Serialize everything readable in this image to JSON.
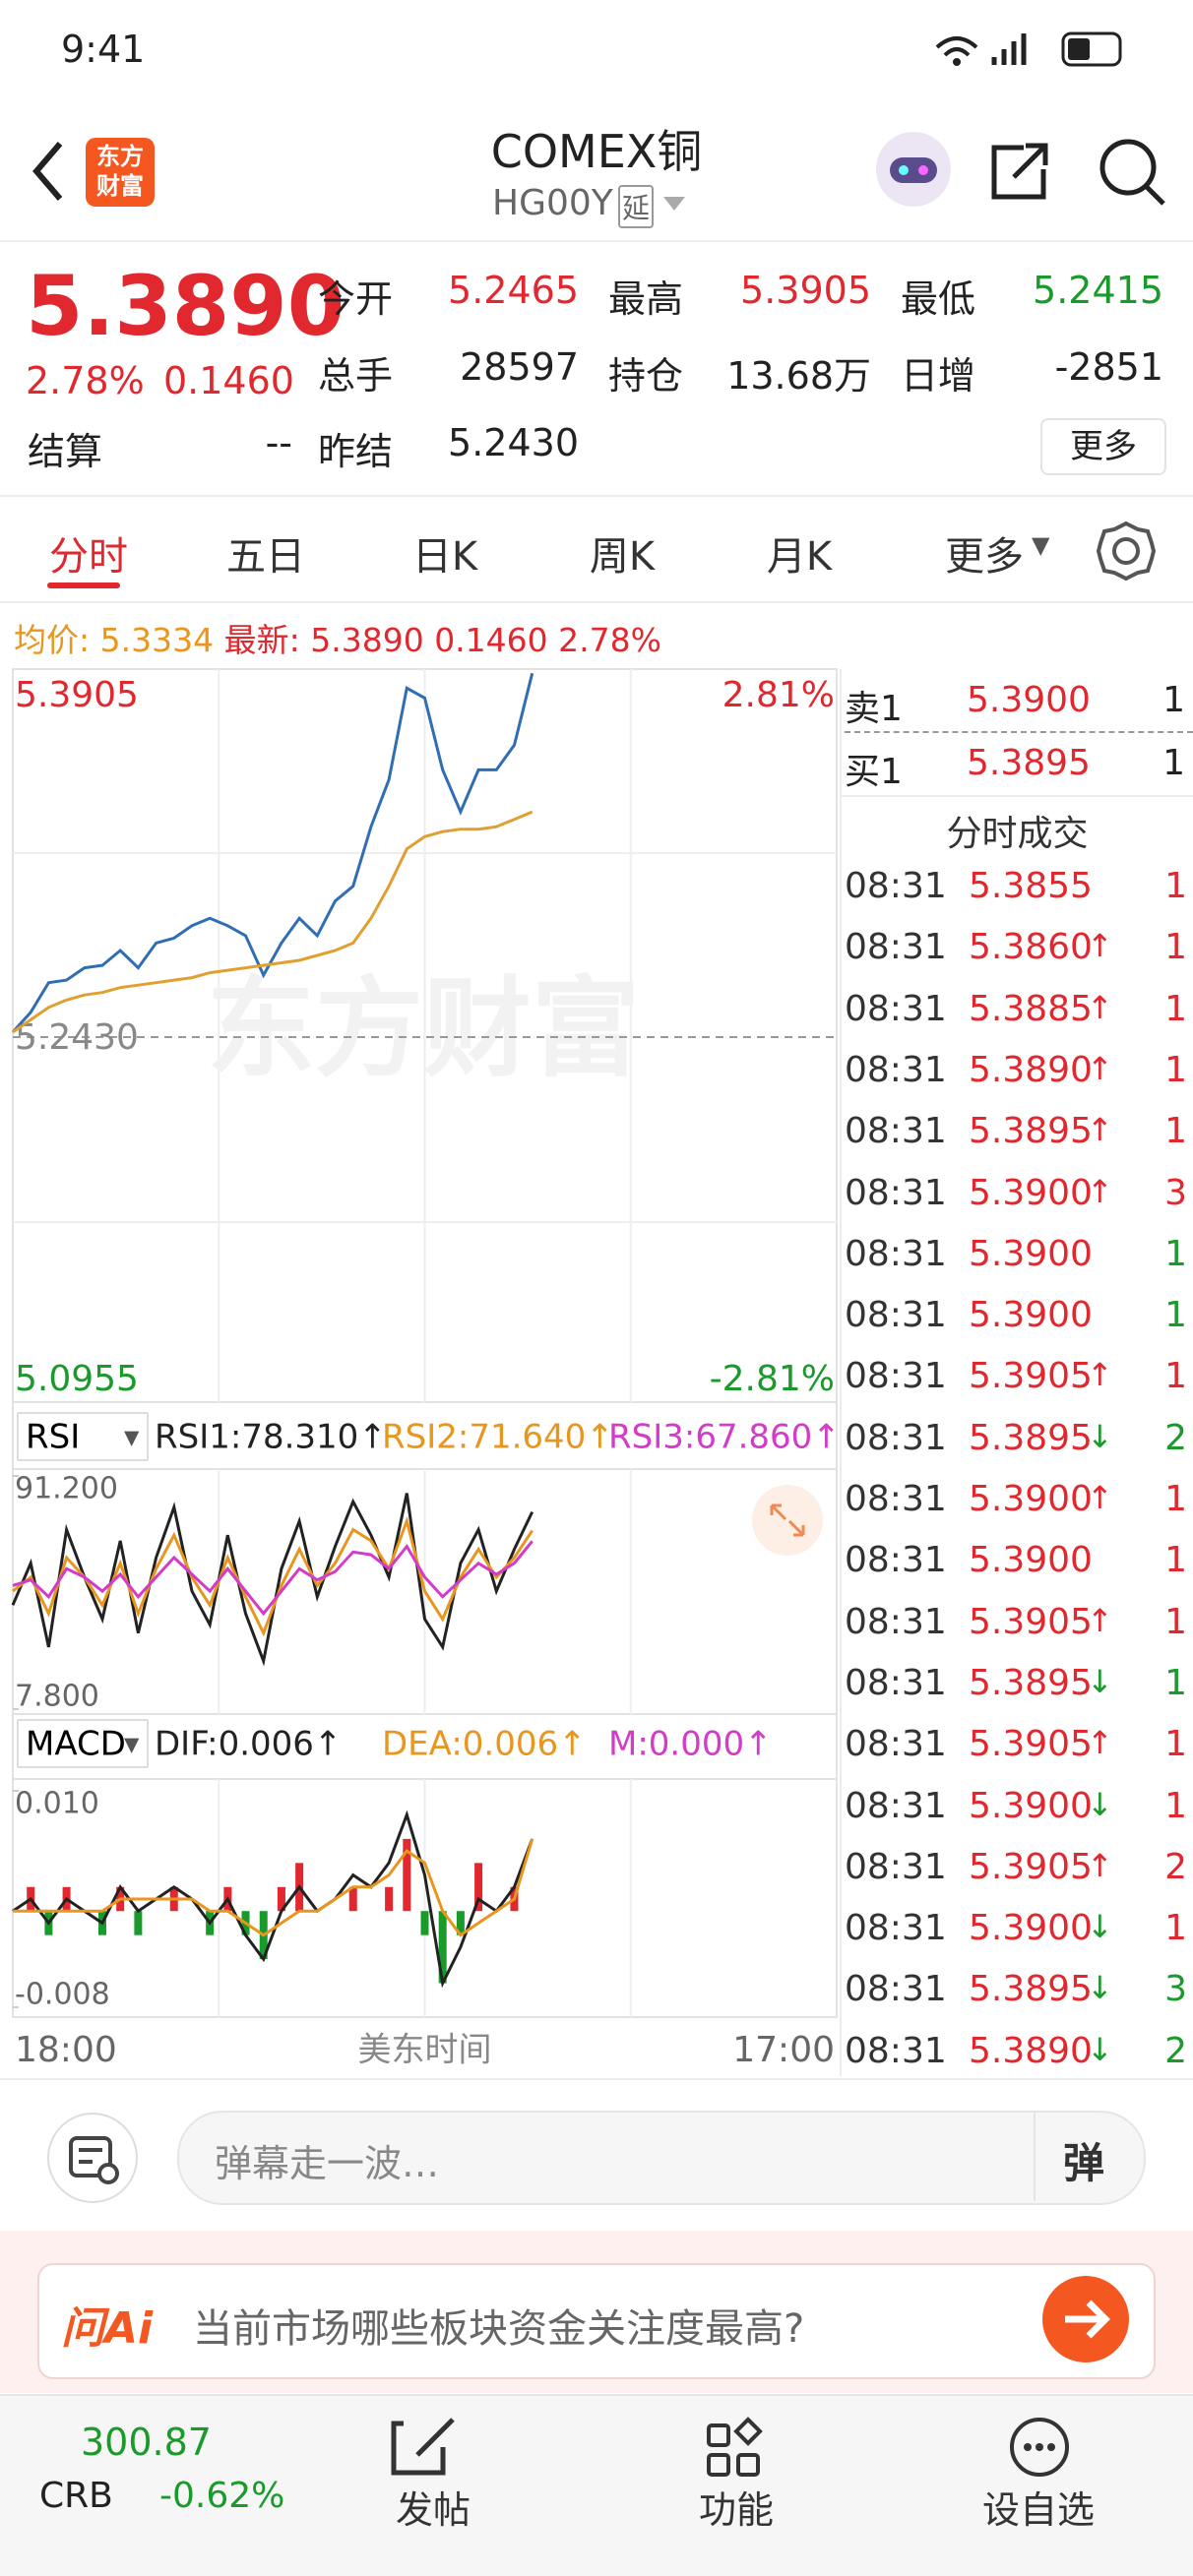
{
  "status_bar": {
    "time": "9:41"
  },
  "header": {
    "title": "COMEX铜",
    "code": "HG00Y",
    "delay_badge": "延",
    "logo": "东方财富"
  },
  "quote": {
    "price": "5.3890",
    "change_pct": "2.78%",
    "change": "0.1460",
    "fields": [
      {
        "label": "今开",
        "value": "5.2465",
        "color": "#e0282e"
      },
      {
        "label": "最高",
        "value": "5.3905",
        "color": "#e0282e"
      },
      {
        "label": "最低",
        "value": "5.2415",
        "color": "#1a9a2b"
      },
      {
        "label": "总手",
        "value": "28597",
        "color": "#222222"
      },
      {
        "label": "持仓",
        "value": "13.68万",
        "color": "#222222"
      },
      {
        "label": "日增",
        "value": "-2851",
        "color": "#222222"
      },
      {
        "label": "结算",
        "value": "--",
        "color": "#222222"
      },
      {
        "label": "昨结",
        "value": "5.2430",
        "color": "#222222"
      }
    ],
    "more_button": "更多"
  },
  "tabs": [
    "分时",
    "五日",
    "日K",
    "周K",
    "月K",
    "更多"
  ],
  "summary": {
    "avg_label": "均价:",
    "avg": "5.3334",
    "last_label": "最新:",
    "last": "5.3890",
    "change": "0.1460",
    "change_pct": "2.78%"
  },
  "chart_data": [
    {
      "type": "line",
      "watermark": "东方财富",
      "x": [
        0,
        30,
        60,
        90,
        120,
        150,
        180,
        210,
        240,
        270,
        300,
        330,
        360,
        390,
        420,
        450,
        480,
        510,
        540,
        570,
        600,
        630,
        660,
        690,
        720,
        750,
        780,
        810,
        840,
        870
      ],
      "xlim": [
        0,
        1380
      ],
      "xticks": [
        {
          "value": 0,
          "label": "18:00"
        },
        {
          "value": 1380,
          "label": "17:00"
        }
      ],
      "x_label": "美东时间",
      "ylim": [
        5.0955,
        5.3905
      ],
      "yticks": [
        5.3905,
        {
          "value": 5.243,
          "label": "5.2430"
        },
        5.0955
      ],
      "right_ticks": [
        "2.81%",
        "-2.81%"
      ],
      "series": [
        {
          "color": "#2f6db5",
          "values": [
            5.245,
            5.253,
            5.265,
            5.266,
            5.271,
            5.272,
            5.278,
            5.271,
            5.281,
            5.283,
            5.288,
            5.291,
            5.288,
            5.284,
            5.268,
            5.281,
            5.291,
            5.284,
            5.298,
            5.304,
            5.328,
            5.347,
            5.384,
            5.38,
            5.351,
            5.334,
            5.351,
            5.351,
            5.361,
            5.39
          ]
        },
        {
          "color": "#e0a030",
          "values": [
            5.245,
            5.25,
            5.255,
            5.258,
            5.26,
            5.261,
            5.263,
            5.264,
            5.265,
            5.266,
            5.267,
            5.269,
            5.27,
            5.271,
            5.272,
            5.273,
            5.274,
            5.276,
            5.278,
            5.281,
            5.291,
            5.304,
            5.319,
            5.324,
            5.326,
            5.327,
            5.327,
            5.328,
            5.331,
            5.334
          ]
        }
      ]
    },
    {
      "type": "line",
      "selector": "RSI",
      "ylim": [
        7.8,
        91.2
      ],
      "yticks": [
        {
          "value": 91.2,
          "label": "91.200"
        },
        {
          "value": 7.8,
          "label": "7.800"
        }
      ],
      "series": [
        {
          "label": "RSI1:78.310↑",
          "color": "#222222",
          "values": [
            45,
            60,
            30,
            72,
            55,
            40,
            68,
            35,
            62,
            80,
            50,
            38,
            70,
            42,
            25,
            58,
            75,
            48,
            66,
            82,
            70,
            55,
            85,
            40,
            30,
            60,
            72,
            50,
            65,
            78.31
          ]
        },
        {
          "label": "RSI2:71.640↑",
          "color": "#e8961e",
          "values": [
            50,
            55,
            42,
            62,
            55,
            45,
            60,
            42,
            58,
            70,
            55,
            45,
            62,
            48,
            35,
            52,
            65,
            52,
            60,
            72,
            68,
            58,
            75,
            50,
            40,
            55,
            65,
            55,
            62,
            71.64
          ]
        },
        {
          "label": "RSI3:67.860↑",
          "color": "#d23cc8",
          "values": [
            52,
            54,
            48,
            58,
            55,
            50,
            56,
            48,
            55,
            62,
            56,
            50,
            58,
            50,
            42,
            50,
            58,
            54,
            57,
            64,
            63,
            58,
            66,
            55,
            48,
            54,
            60,
            56,
            60,
            67.86
          ]
        }
      ]
    },
    {
      "type": "line",
      "selector": "MACD",
      "ylim": [
        -0.008,
        0.01
      ],
      "yticks": [
        {
          "value": 0.01,
          "label": "0.010"
        },
        {
          "value": -0.008,
          "label": "-0.008"
        }
      ],
      "series": [
        {
          "label": "DIF:0.006↑",
          "color": "#222222",
          "values": [
            0,
            0.001,
            -0.001,
            0.001,
            0,
            -0.001,
            0.002,
            0,
            0.001,
            0.002,
            0.001,
            -0.001,
            0.001,
            -0.002,
            -0.004,
            0,
            0.002,
            0,
            0.001,
            0.003,
            0.002,
            0.004,
            0.008,
            0.003,
            -0.006,
            -0.003,
            0.001,
            0,
            0.002,
            0.006
          ]
        },
        {
          "label": "DEA:0.006↑",
          "color": "#e8961e",
          "values": [
            0,
            0,
            0,
            0,
            0,
            0,
            0.001,
            0.001,
            0.001,
            0.001,
            0.001,
            0,
            0,
            -0.001,
            -0.002,
            -0.001,
            0,
            0,
            0.001,
            0.002,
            0.002,
            0.003,
            0.005,
            0.004,
            0,
            -0.002,
            -0.001,
            0,
            0.001,
            0.006
          ]
        }
      ],
      "histogram": {
        "label": "M:0.000↑",
        "label_color": "#d23cc8",
        "color_up": "#e0282e",
        "color_down": "#1a9a2b",
        "values": [
          0,
          0.002,
          -0.002,
          0.002,
          0,
          -0.002,
          0.002,
          -0.002,
          0,
          0.002,
          0,
          -0.002,
          0.002,
          -0.002,
          -0.004,
          0.002,
          0.004,
          0,
          0,
          0.002,
          0,
          0.002,
          0.006,
          -0.002,
          -0.006,
          -0.002,
          0.004,
          0,
          0.002,
          0
        ]
      }
    }
  ],
  "order_book": [
    {
      "label": "卖1",
      "price": "5.3900",
      "vol": "1"
    },
    {
      "label": "买1",
      "price": "5.3895",
      "vol": "1"
    }
  ],
  "trades": {
    "title": "分时成交",
    "rows": [
      {
        "time": "08:31",
        "price": "5.3855",
        "dir": "",
        "vol": "1",
        "vol_color": "#e0282e"
      },
      {
        "time": "08:31",
        "price": "5.3860",
        "dir": "↑",
        "vol": "1",
        "vol_color": "#e0282e"
      },
      {
        "time": "08:31",
        "price": "5.3885",
        "dir": "↑",
        "vol": "1",
        "vol_color": "#e0282e"
      },
      {
        "time": "08:31",
        "price": "5.3890",
        "dir": "↑",
        "vol": "1",
        "vol_color": "#e0282e"
      },
      {
        "time": "08:31",
        "price": "5.3895",
        "dir": "↑",
        "vol": "1",
        "vol_color": "#e0282e"
      },
      {
        "time": "08:31",
        "price": "5.3900",
        "dir": "↑",
        "vol": "3",
        "vol_color": "#e0282e"
      },
      {
        "time": "08:31",
        "price": "5.3900",
        "dir": "",
        "vol": "1",
        "vol_color": "#1a9a2b"
      },
      {
        "time": "08:31",
        "price": "5.3900",
        "dir": "",
        "vol": "1",
        "vol_color": "#1a9a2b"
      },
      {
        "time": "08:31",
        "price": "5.3905",
        "dir": "↑",
        "vol": "1",
        "vol_color": "#e0282e"
      },
      {
        "time": "08:31",
        "price": "5.3895",
        "dir": "↓",
        "vol": "2",
        "vol_color": "#1a9a2b"
      },
      {
        "time": "08:31",
        "price": "5.3900",
        "dir": "↑",
        "vol": "1",
        "vol_color": "#e0282e"
      },
      {
        "time": "08:31",
        "price": "5.3900",
        "dir": "",
        "vol": "1",
        "vol_color": "#e0282e"
      },
      {
        "time": "08:31",
        "price": "5.3905",
        "dir": "↑",
        "vol": "1",
        "vol_color": "#e0282e"
      },
      {
        "time": "08:31",
        "price": "5.3895",
        "dir": "↓",
        "vol": "1",
        "vol_color": "#1a9a2b"
      },
      {
        "time": "08:31",
        "price": "5.3905",
        "dir": "↑",
        "vol": "1",
        "vol_color": "#e0282e"
      },
      {
        "time": "08:31",
        "price": "5.3900",
        "dir": "↓",
        "vol": "1",
        "vol_color": "#e0282e"
      },
      {
        "time": "08:31",
        "price": "5.3905",
        "dir": "↑",
        "vol": "2",
        "vol_color": "#e0282e"
      },
      {
        "time": "08:31",
        "price": "5.3900",
        "dir": "↓",
        "vol": "1",
        "vol_color": "#e0282e"
      },
      {
        "time": "08:31",
        "price": "5.3895",
        "dir": "↓",
        "vol": "3",
        "vol_color": "#1a9a2b"
      },
      {
        "time": "08:31",
        "price": "5.3890",
        "dir": "↓",
        "vol": "2",
        "vol_color": "#1a9a2b"
      }
    ]
  },
  "comment_bar": {
    "placeholder": "弹幕走一波…",
    "button": "弹"
  },
  "ai_bar": {
    "logo": "问Ai",
    "prompt": "当前市场哪些板块资金关注度最高?"
  },
  "bottom_nav": {
    "index": {
      "value": "300.87",
      "name": "CRB",
      "change": "-0.62%"
    },
    "items": [
      "发帖",
      "功能",
      "设自选"
    ]
  }
}
